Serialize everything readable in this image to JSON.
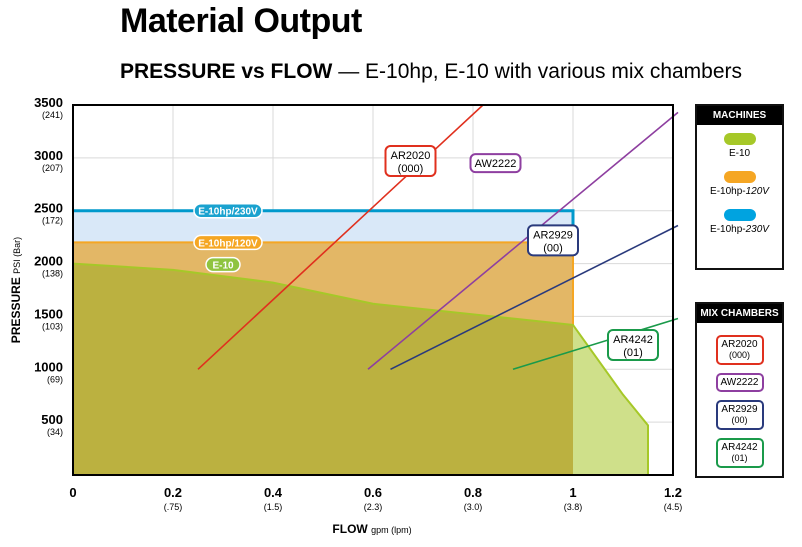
{
  "header": {
    "title": "Material Output",
    "subtitle_bold": "PRESSURE vs FLOW",
    "subtitle_rest": " — E-10hp, E-10 with various mix chambers"
  },
  "chart_data": {
    "type": "area",
    "title": "PRESSURE vs FLOW",
    "xlabel_main": "FLOW",
    "xlabel_unit": "gpm (lpm)",
    "ylabel_main": "PRESSURE",
    "ylabel_unit": "PSI (Bar)",
    "xlim": [
      0,
      1.2
    ],
    "ylim": [
      0,
      3500
    ],
    "x_ticks": [
      {
        "value": 0,
        "label": "0",
        "sub": ""
      },
      {
        "value": 0.2,
        "label": "0.2",
        "sub": "(.75)"
      },
      {
        "value": 0.4,
        "label": "0.4",
        "sub": "(1.5)"
      },
      {
        "value": 0.6,
        "label": "0.6",
        "sub": "(2.3)"
      },
      {
        "value": 0.8,
        "label": "0.8",
        "sub": "(3.0)"
      },
      {
        "value": 1.0,
        "label": "1",
        "sub": "(3.8)"
      },
      {
        "value": 1.2,
        "label": "1.2",
        "sub": "(4.5)"
      }
    ],
    "y_ticks": [
      {
        "value": 3500,
        "label": "3500",
        "sub": "(241)"
      },
      {
        "value": 3000,
        "label": "3000",
        "sub": "(207)"
      },
      {
        "value": 2500,
        "label": "2500",
        "sub": "(172)"
      },
      {
        "value": 2000,
        "label": "2000",
        "sub": "(138)"
      },
      {
        "value": 1500,
        "label": "1500",
        "sub": "(103)"
      },
      {
        "value": 1000,
        "label": "1000",
        "sub": "(69)"
      },
      {
        "value": 500,
        "label": "500",
        "sub": "(34)"
      }
    ],
    "machines": [
      {
        "name": "E-10hp/230V",
        "color": "#0099cc",
        "fill": "#d9e8f8",
        "points": [
          [
            0,
            2500
          ],
          [
            1.0,
            2500
          ],
          [
            1.0,
            2200
          ]
        ]
      },
      {
        "name": "E-10hp/120V",
        "color": "#f5a623",
        "fill": "#e3b766",
        "points": [
          [
            0,
            2200
          ],
          [
            1.0,
            2200
          ],
          [
            1.0,
            1420
          ]
        ]
      },
      {
        "name": "E-10",
        "color": "#a6c828",
        "fill": "#b4b03a",
        "points": [
          [
            0,
            2000
          ],
          [
            0.2,
            1940
          ],
          [
            0.4,
            1820
          ],
          [
            0.6,
            1620
          ],
          [
            0.8,
            1520
          ],
          [
            1.0,
            1420
          ],
          [
            1.1,
            760
          ],
          [
            1.15,
            470
          ],
          [
            1.15,
            0
          ]
        ]
      }
    ],
    "mix_chamber_lines": [
      {
        "name": "AR2020",
        "code": "(000)",
        "color": "#e0301e",
        "points": [
          [
            0.25,
            1000
          ],
          [
            0.82,
            3500
          ]
        ]
      },
      {
        "name": "AW2222",
        "code": "",
        "color": "#8e3fa0",
        "points": [
          [
            0.59,
            1000
          ],
          [
            1.21,
            3430
          ]
        ]
      },
      {
        "name": "AR2929",
        "code": "(00)",
        "color": "#2a3a7c",
        "points": [
          [
            0.635,
            1000
          ],
          [
            1.21,
            2360
          ]
        ]
      },
      {
        "name": "AR4242",
        "code": "(01)",
        "color": "#1a9a4a",
        "points": [
          [
            0.88,
            1000
          ],
          [
            1.21,
            1480
          ]
        ]
      }
    ],
    "curve_labels": [
      {
        "text": "E-10hp/230V",
        "color": "#1aa2cf"
      },
      {
        "text": "E-10hp/120V",
        "color": "#f5a623"
      },
      {
        "text": "E-10",
        "color": "#8fc440"
      }
    ]
  },
  "legend_machines": {
    "title": "MACHINES",
    "items": [
      {
        "label": "E-10",
        "suffix": "",
        "color": "#a6c828"
      },
      {
        "label": "E-10hp-",
        "suffix": "120V",
        "color": "#f5a623"
      },
      {
        "label": "E-10hp-",
        "suffix": "230V",
        "color": "#00a3e0"
      }
    ]
  },
  "legend_mix": {
    "title": "MIX CHAMBERS",
    "items": [
      {
        "name": "AR2020",
        "code": "(000)",
        "color": "#e0301e"
      },
      {
        "name": "AW2222",
        "code": "",
        "color": "#8e3fa0"
      },
      {
        "name": "AR2929",
        "code": "(00)",
        "color": "#2a3a7c"
      },
      {
        "name": "AR4242",
        "code": "(01)",
        "color": "#1a9a4a"
      }
    ]
  }
}
